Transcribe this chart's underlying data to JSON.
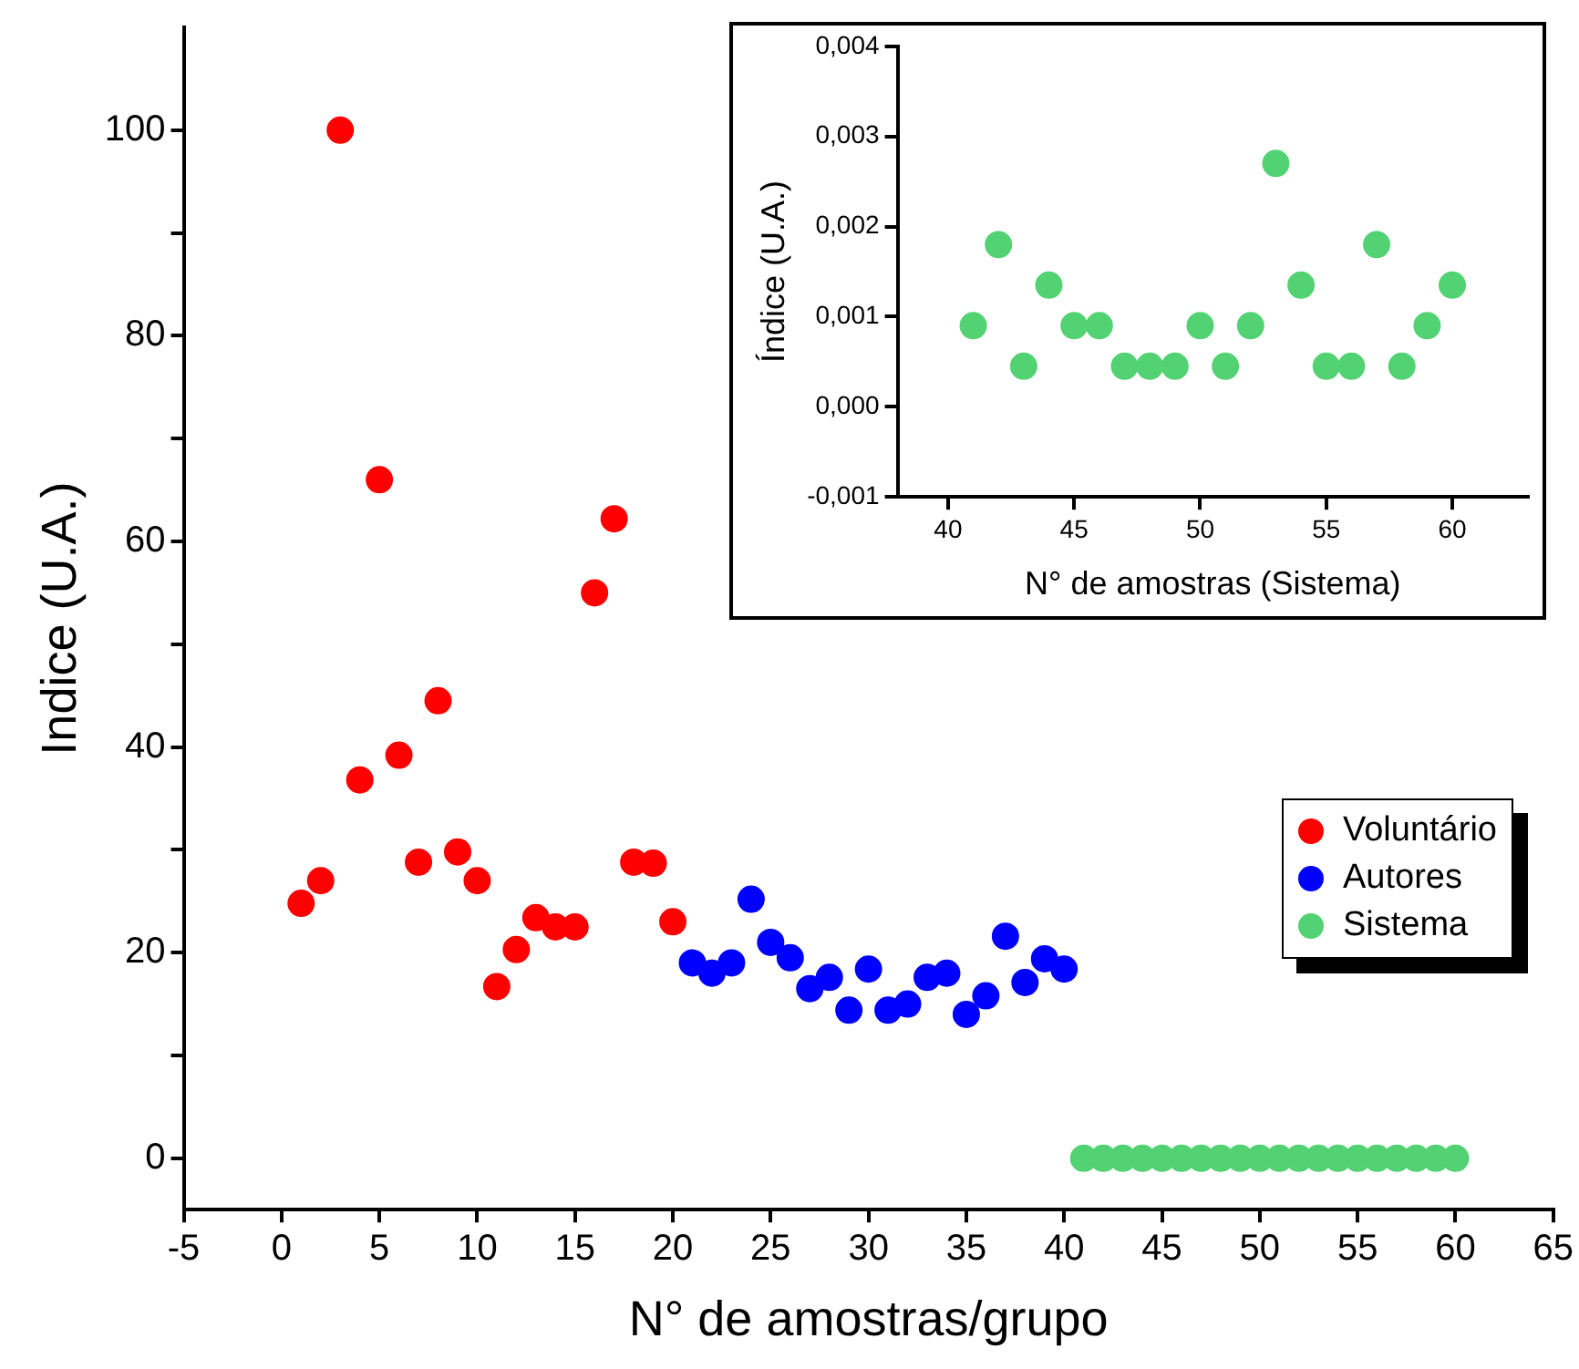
{
  "chart_data": [
    {
      "type": "scatter",
      "xlabel": "N° de amostras/grupo",
      "ylabel": "Indice (U.A.)",
      "marker": "circle",
      "legend": "right",
      "grid": false,
      "xlim": [
        -5,
        65
      ],
      "xticks": [
        -5,
        0,
        5,
        10,
        15,
        20,
        25,
        30,
        35,
        40,
        45,
        50,
        55,
        60,
        65
      ],
      "ylim": [
        -5,
        110
      ],
      "yticks": [
        0,
        {
          "value": 10,
          "label": null
        },
        20,
        {
          "value": 30,
          "label": null
        },
        40,
        {
          "value": 50,
          "label": null
        },
        60,
        {
          "value": 70,
          "label": null
        },
        80,
        {
          "value": 90,
          "label": null
        },
        100
      ],
      "series": [
        {
          "name": "Voluntário",
          "color": "#ff0000",
          "x": [
            1,
            2,
            3,
            4,
            5,
            6,
            7,
            8,
            9,
            10,
            11,
            12,
            13,
            14,
            15,
            16,
            17,
            18,
            19,
            20
          ],
          "values": [
            24.8,
            27,
            100,
            36.8,
            66,
            39.2,
            28.8,
            44.5,
            29.8,
            27,
            16.7,
            20.3,
            23.4,
            22.5,
            22.5,
            55,
            62.2,
            28.8,
            28.7,
            23
          ]
        },
        {
          "name": "Autores",
          "color": "#0000ff",
          "x": [
            21,
            22,
            23,
            24,
            25,
            26,
            27,
            28,
            29,
            30,
            31,
            32,
            33,
            34,
            35,
            36,
            37,
            38,
            39,
            40
          ],
          "values": [
            19,
            18,
            19,
            25.2,
            21,
            19.5,
            16.5,
            17.6,
            14.4,
            18.4,
            14.4,
            15,
            17.6,
            18,
            14,
            15.8,
            21.6,
            17.1,
            19.4,
            18.4
          ]
        },
        {
          "name": "Sistema",
          "color": "#52d273",
          "x": [
            41,
            42,
            43,
            44,
            45,
            46,
            47,
            48,
            49,
            50,
            51,
            52,
            53,
            54,
            55,
            56,
            57,
            58,
            59,
            60
          ],
          "values": [
            0,
            0,
            0,
            0,
            0,
            0,
            0,
            0,
            0,
            0,
            0,
            0,
            0,
            0,
            0,
            0,
            0,
            0,
            0,
            0
          ]
        }
      ]
    },
    {
      "type": "scatter",
      "xlabel": "N° de amostras (Sistema)",
      "ylabel": "Índice (U.A.)",
      "marker": "circle",
      "grid": false,
      "xlim": [
        38,
        63
      ],
      "xticks": [
        40,
        45,
        50,
        55,
        60
      ],
      "ylim": [
        -0.001,
        0.004
      ],
      "yticks": [
        {
          "value": -0.001,
          "label": "-0,001"
        },
        {
          "value": 0,
          "label": "0,000"
        },
        {
          "value": 0.001,
          "label": "0,001"
        },
        {
          "value": 0.002,
          "label": "0,002"
        },
        {
          "value": 0.003,
          "label": "0,003"
        },
        {
          "value": 0.004,
          "label": "0,004"
        }
      ],
      "series": [
        {
          "color": "#52d273",
          "x": [
            41,
            42,
            43,
            44,
            45,
            46,
            47,
            48,
            49,
            50,
            51,
            52,
            53,
            54,
            55,
            56,
            57,
            58,
            59,
            60
          ],
          "values": [
            0.0009,
            0.0018,
            0.00045,
            0.00135,
            0.0009,
            0.0009,
            0.00045,
            0.00045,
            0.00045,
            0.0009,
            0.00045,
            0.0009,
            0.0027,
            0.00135,
            0.00045,
            0.00045,
            0.0018,
            0.00045,
            0.0009,
            0.00135
          ]
        }
      ]
    }
  ]
}
